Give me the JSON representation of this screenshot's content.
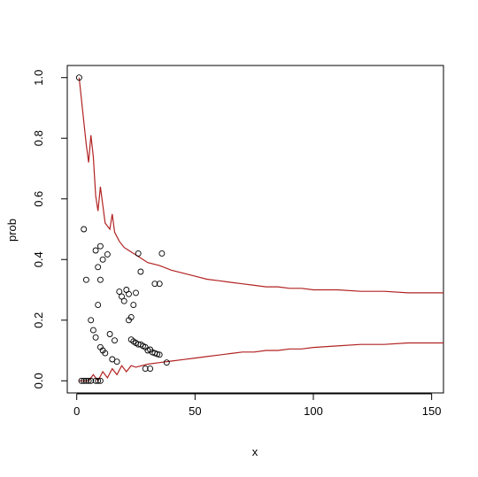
{
  "chart_data": {
    "type": "scatter",
    "xlabel": "x",
    "ylabel": "prob",
    "xlim": [
      -4,
      155
    ],
    "ylim": [
      -0.04,
      1.04
    ],
    "x_ticks": [
      0,
      50,
      100,
      150
    ],
    "y_ticks": [
      0.0,
      0.2,
      0.4,
      0.6,
      0.8,
      1.0
    ],
    "x_tick_labels": [
      "0",
      "50",
      "100",
      "150"
    ],
    "y_tick_labels": [
      "0.0",
      "0.2",
      "0.4",
      "0.6",
      "0.8",
      "1.0"
    ],
    "grid": false,
    "legend": "none",
    "point_color": "#000000",
    "band_color": "#b22222",
    "series": [
      {
        "values": [
          [
            1,
            1.0
          ],
          [
            2,
            0.0
          ],
          [
            3,
            0.5
          ],
          [
            3,
            0.0
          ],
          [
            4,
            0.333
          ],
          [
            4,
            0.0
          ],
          [
            5,
            0.0
          ],
          [
            6,
            0.2
          ],
          [
            6,
            0.0
          ],
          [
            7,
            0.167
          ],
          [
            8,
            0.143
          ],
          [
            8,
            0.0
          ],
          [
            8,
            0.43
          ],
          [
            9,
            0.375
          ],
          [
            9,
            0.0
          ],
          [
            9,
            0.25
          ],
          [
            10,
            0.444
          ],
          [
            10,
            0.333
          ],
          [
            10,
            0.111
          ],
          [
            10,
            0.0
          ],
          [
            11,
            0.1
          ],
          [
            11,
            0.4
          ],
          [
            12,
            0.091
          ],
          [
            13,
            0.417
          ],
          [
            14,
            0.154
          ],
          [
            15,
            0.071
          ],
          [
            16,
            0.133
          ],
          [
            17,
            0.063
          ],
          [
            18,
            0.294
          ],
          [
            19,
            0.278
          ],
          [
            20,
            0.263
          ],
          [
            21,
            0.3
          ],
          [
            22,
            0.286
          ],
          [
            23,
            0.136
          ],
          [
            24,
            0.13
          ],
          [
            25,
            0.125
          ],
          [
            26,
            0.12
          ],
          [
            27,
            0.12
          ],
          [
            28,
            0.115
          ],
          [
            29,
            0.111
          ],
          [
            30,
            0.1
          ],
          [
            31,
            0.103
          ],
          [
            32,
            0.094
          ],
          [
            33,
            0.091
          ],
          [
            34,
            0.088
          ],
          [
            35,
            0.086
          ],
          [
            22,
            0.2
          ],
          [
            23,
            0.21
          ],
          [
            24,
            0.25
          ],
          [
            25,
            0.29
          ],
          [
            26,
            0.42
          ],
          [
            27,
            0.36
          ],
          [
            29,
            0.04
          ],
          [
            31,
            0.04
          ],
          [
            33,
            0.32
          ],
          [
            35,
            0.32
          ],
          [
            36,
            0.42
          ],
          [
            38,
            0.06
          ]
        ]
      }
    ],
    "upper_band": [
      [
        1,
        1.0
      ],
      [
        4,
        0.78
      ],
      [
        5,
        0.72
      ],
      [
        6,
        0.81
      ],
      [
        7,
        0.74
      ],
      [
        8,
        0.61
      ],
      [
        9,
        0.56
      ],
      [
        10,
        0.64
      ],
      [
        11,
        0.58
      ],
      [
        12,
        0.52
      ],
      [
        14,
        0.5
      ],
      [
        15,
        0.55
      ],
      [
        16,
        0.49
      ],
      [
        18,
        0.46
      ],
      [
        20,
        0.44
      ],
      [
        22,
        0.43
      ],
      [
        24,
        0.42
      ],
      [
        26,
        0.41
      ],
      [
        28,
        0.4
      ],
      [
        30,
        0.39
      ],
      [
        35,
        0.38
      ],
      [
        40,
        0.365
      ],
      [
        45,
        0.355
      ],
      [
        50,
        0.345
      ],
      [
        55,
        0.335
      ],
      [
        60,
        0.33
      ],
      [
        65,
        0.325
      ],
      [
        70,
        0.32
      ],
      [
        75,
        0.315
      ],
      [
        80,
        0.31
      ],
      [
        85,
        0.31
      ],
      [
        90,
        0.305
      ],
      [
        95,
        0.305
      ],
      [
        100,
        0.3
      ],
      [
        110,
        0.3
      ],
      [
        120,
        0.295
      ],
      [
        130,
        0.295
      ],
      [
        140,
        0.29
      ],
      [
        155,
        0.29
      ]
    ],
    "lower_band": [
      [
        1,
        0.0
      ],
      [
        5,
        0.0
      ],
      [
        7,
        0.02
      ],
      [
        9,
        0.0
      ],
      [
        11,
        0.03
      ],
      [
        13,
        0.01
      ],
      [
        15,
        0.04
      ],
      [
        17,
        0.02
      ],
      [
        19,
        0.05
      ],
      [
        21,
        0.03
      ],
      [
        23,
        0.05
      ],
      [
        25,
        0.045
      ],
      [
        30,
        0.055
      ],
      [
        35,
        0.06
      ],
      [
        40,
        0.065
      ],
      [
        45,
        0.07
      ],
      [
        50,
        0.075
      ],
      [
        55,
        0.08
      ],
      [
        60,
        0.085
      ],
      [
        65,
        0.09
      ],
      [
        70,
        0.095
      ],
      [
        75,
        0.095
      ],
      [
        80,
        0.1
      ],
      [
        85,
        0.1
      ],
      [
        90,
        0.105
      ],
      [
        95,
        0.105
      ],
      [
        100,
        0.11
      ],
      [
        110,
        0.115
      ],
      [
        120,
        0.12
      ],
      [
        130,
        0.12
      ],
      [
        140,
        0.125
      ],
      [
        155,
        0.125
      ]
    ]
  }
}
